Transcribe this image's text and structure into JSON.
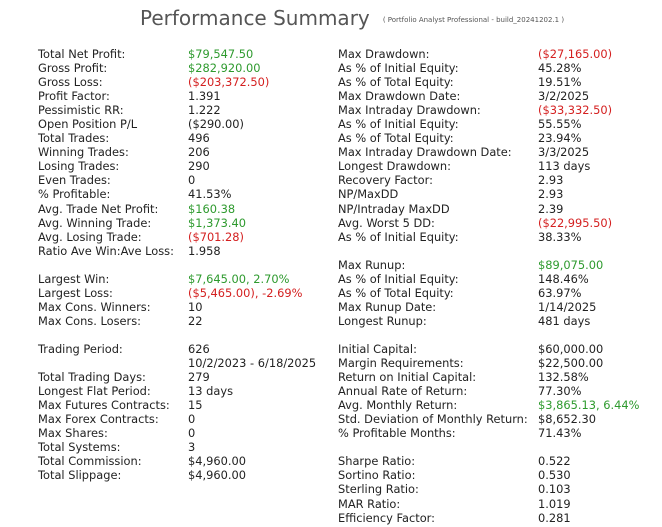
{
  "header": {
    "title": "Performance Summary",
    "subtitle": "( Portfolio Analyst Professional - build_20241202.1 )"
  },
  "colors": {
    "positive": "#2e9a2e",
    "negative": "#d42020"
  },
  "left": [
    {
      "label": "Total Net Profit:",
      "value": "$79,547.50",
      "tone": "pos"
    },
    {
      "label": "Gross Profit:",
      "value": "$282,920.00",
      "tone": "pos"
    },
    {
      "label": "Gross Loss:",
      "value": "($203,372.50)",
      "tone": "neg"
    },
    {
      "label": "Profit Factor:",
      "value": "1.391",
      "tone": ""
    },
    {
      "label": "Pessimistic RR:",
      "value": "1.222",
      "tone": ""
    },
    {
      "label": "Open Position P/L",
      "value": "($290.00)",
      "tone": ""
    },
    {
      "label": "Total Trades:",
      "value": "496",
      "tone": ""
    },
    {
      "label": "Winning Trades:",
      "value": "206",
      "tone": ""
    },
    {
      "label": "Losing Trades:",
      "value": "290",
      "tone": ""
    },
    {
      "label": "Even Trades:",
      "value": "0",
      "tone": ""
    },
    {
      "label": "% Profitable:",
      "value": "41.53%",
      "tone": ""
    },
    {
      "label": "Avg. Trade Net Profit:",
      "value": "$160.38",
      "tone": "pos"
    },
    {
      "label": "Avg. Winning Trade:",
      "value": "$1,373.40",
      "tone": "pos"
    },
    {
      "label": "Avg. Losing Trade:",
      "value": "($701.28)",
      "tone": "neg"
    },
    {
      "label": "Ratio Ave Win:Ave Loss:",
      "value": "1.958",
      "tone": ""
    },
    {
      "label": "",
      "value": "",
      "tone": ""
    },
    {
      "label": "Largest Win:",
      "value": "$7,645.00, 2.70%",
      "tone": "pos"
    },
    {
      "label": "Largest Loss:",
      "value": "($5,465.00), -2.69%",
      "tone": "neg"
    },
    {
      "label": "Max Cons. Winners:",
      "value": "10",
      "tone": ""
    },
    {
      "label": "Max Cons. Losers:",
      "value": "22",
      "tone": ""
    },
    {
      "label": "",
      "value": "",
      "tone": ""
    },
    {
      "label": "Trading Period:",
      "value": "626",
      "tone": ""
    },
    {
      "label": "",
      "value": "10/2/2023 - 6/18/2025",
      "tone": ""
    },
    {
      "label": "Total Trading Days:",
      "value": "279",
      "tone": ""
    },
    {
      "label": "Longest Flat Period:",
      "value": "13 days",
      "tone": ""
    },
    {
      "label": "Max Futures Contracts:",
      "value": "15",
      "tone": ""
    },
    {
      "label": "Max Forex Contracts:",
      "value": "0",
      "tone": ""
    },
    {
      "label": "Max Shares:",
      "value": "0",
      "tone": ""
    },
    {
      "label": "Total Systems:",
      "value": "3",
      "tone": ""
    },
    {
      "label": "Total Commission:",
      "value": "$4,960.00",
      "tone": ""
    },
    {
      "label": "Total Slippage:",
      "value": "$4,960.00",
      "tone": ""
    }
  ],
  "right": [
    {
      "label": "Max Drawdown:",
      "value": "($27,165.00)",
      "tone": "neg"
    },
    {
      "label": "As % of Initial Equity:",
      "value": "45.28%",
      "tone": ""
    },
    {
      "label": "As % of Total Equity:",
      "value": "19.51%",
      "tone": ""
    },
    {
      "label": "Max Drawdown Date:",
      "value": "3/2/2025",
      "tone": ""
    },
    {
      "label": "Max Intraday Drawdown:",
      "value": "($33,332.50)",
      "tone": "neg"
    },
    {
      "label": "As % of Initial Equity:",
      "value": "55.55%",
      "tone": ""
    },
    {
      "label": "As % of Total Equity:",
      "value": "23.94%",
      "tone": ""
    },
    {
      "label": "Max Intraday Drawdown Date:",
      "value": "3/3/2025",
      "tone": ""
    },
    {
      "label": "Longest Drawdown:",
      "value": "113 days",
      "tone": ""
    },
    {
      "label": "Recovery Factor:",
      "value": "2.93",
      "tone": ""
    },
    {
      "label": "NP/MaxDD",
      "value": "2.93",
      "tone": ""
    },
    {
      "label": "NP/Intraday MaxDD",
      "value": "2.39",
      "tone": ""
    },
    {
      "label": "Avg. Worst 5 DD:",
      "value": "($22,995.50)",
      "tone": "neg"
    },
    {
      "label": "As % of Initial Equity:",
      "value": "38.33%",
      "tone": ""
    },
    {
      "label": "",
      "value": "",
      "tone": ""
    },
    {
      "label": "Max Runup:",
      "value": "$89,075.00",
      "tone": "pos"
    },
    {
      "label": "As % of Initial Equity:",
      "value": "148.46%",
      "tone": ""
    },
    {
      "label": "As % of Total Equity:",
      "value": "63.97%",
      "tone": ""
    },
    {
      "label": "Max Runup Date:",
      "value": "1/14/2025",
      "tone": ""
    },
    {
      "label": "Longest Runup:",
      "value": "481 days",
      "tone": ""
    },
    {
      "label": "",
      "value": "",
      "tone": ""
    },
    {
      "label": "Initial Capital:",
      "value": "$60,000.00",
      "tone": ""
    },
    {
      "label": "Margin Requirements:",
      "value": "$22,500.00",
      "tone": ""
    },
    {
      "label": "Return on Initial Capital:",
      "value": "132.58%",
      "tone": ""
    },
    {
      "label": "Annual Rate of Return:",
      "value": "77.30%",
      "tone": ""
    },
    {
      "label": "Avg. Monthly Return:",
      "value": "$3,865.13, 6.44%",
      "tone": "pos"
    },
    {
      "label": "Std. Deviation of Monthly Return:",
      "value": "$8,652.30",
      "tone": ""
    },
    {
      "label": "% Profitable Months:",
      "value": "71.43%",
      "tone": ""
    },
    {
      "label": "",
      "value": "",
      "tone": ""
    },
    {
      "label": "Sharpe Ratio:",
      "value": "0.522",
      "tone": ""
    },
    {
      "label": "Sortino Ratio:",
      "value": "0.530",
      "tone": ""
    },
    {
      "label": "Sterling Ratio:",
      "value": "0.103",
      "tone": ""
    },
    {
      "label": "MAR Ratio:",
      "value": "1.019",
      "tone": ""
    },
    {
      "label": "Efficiency Factor:",
      "value": "0.281",
      "tone": ""
    }
  ]
}
